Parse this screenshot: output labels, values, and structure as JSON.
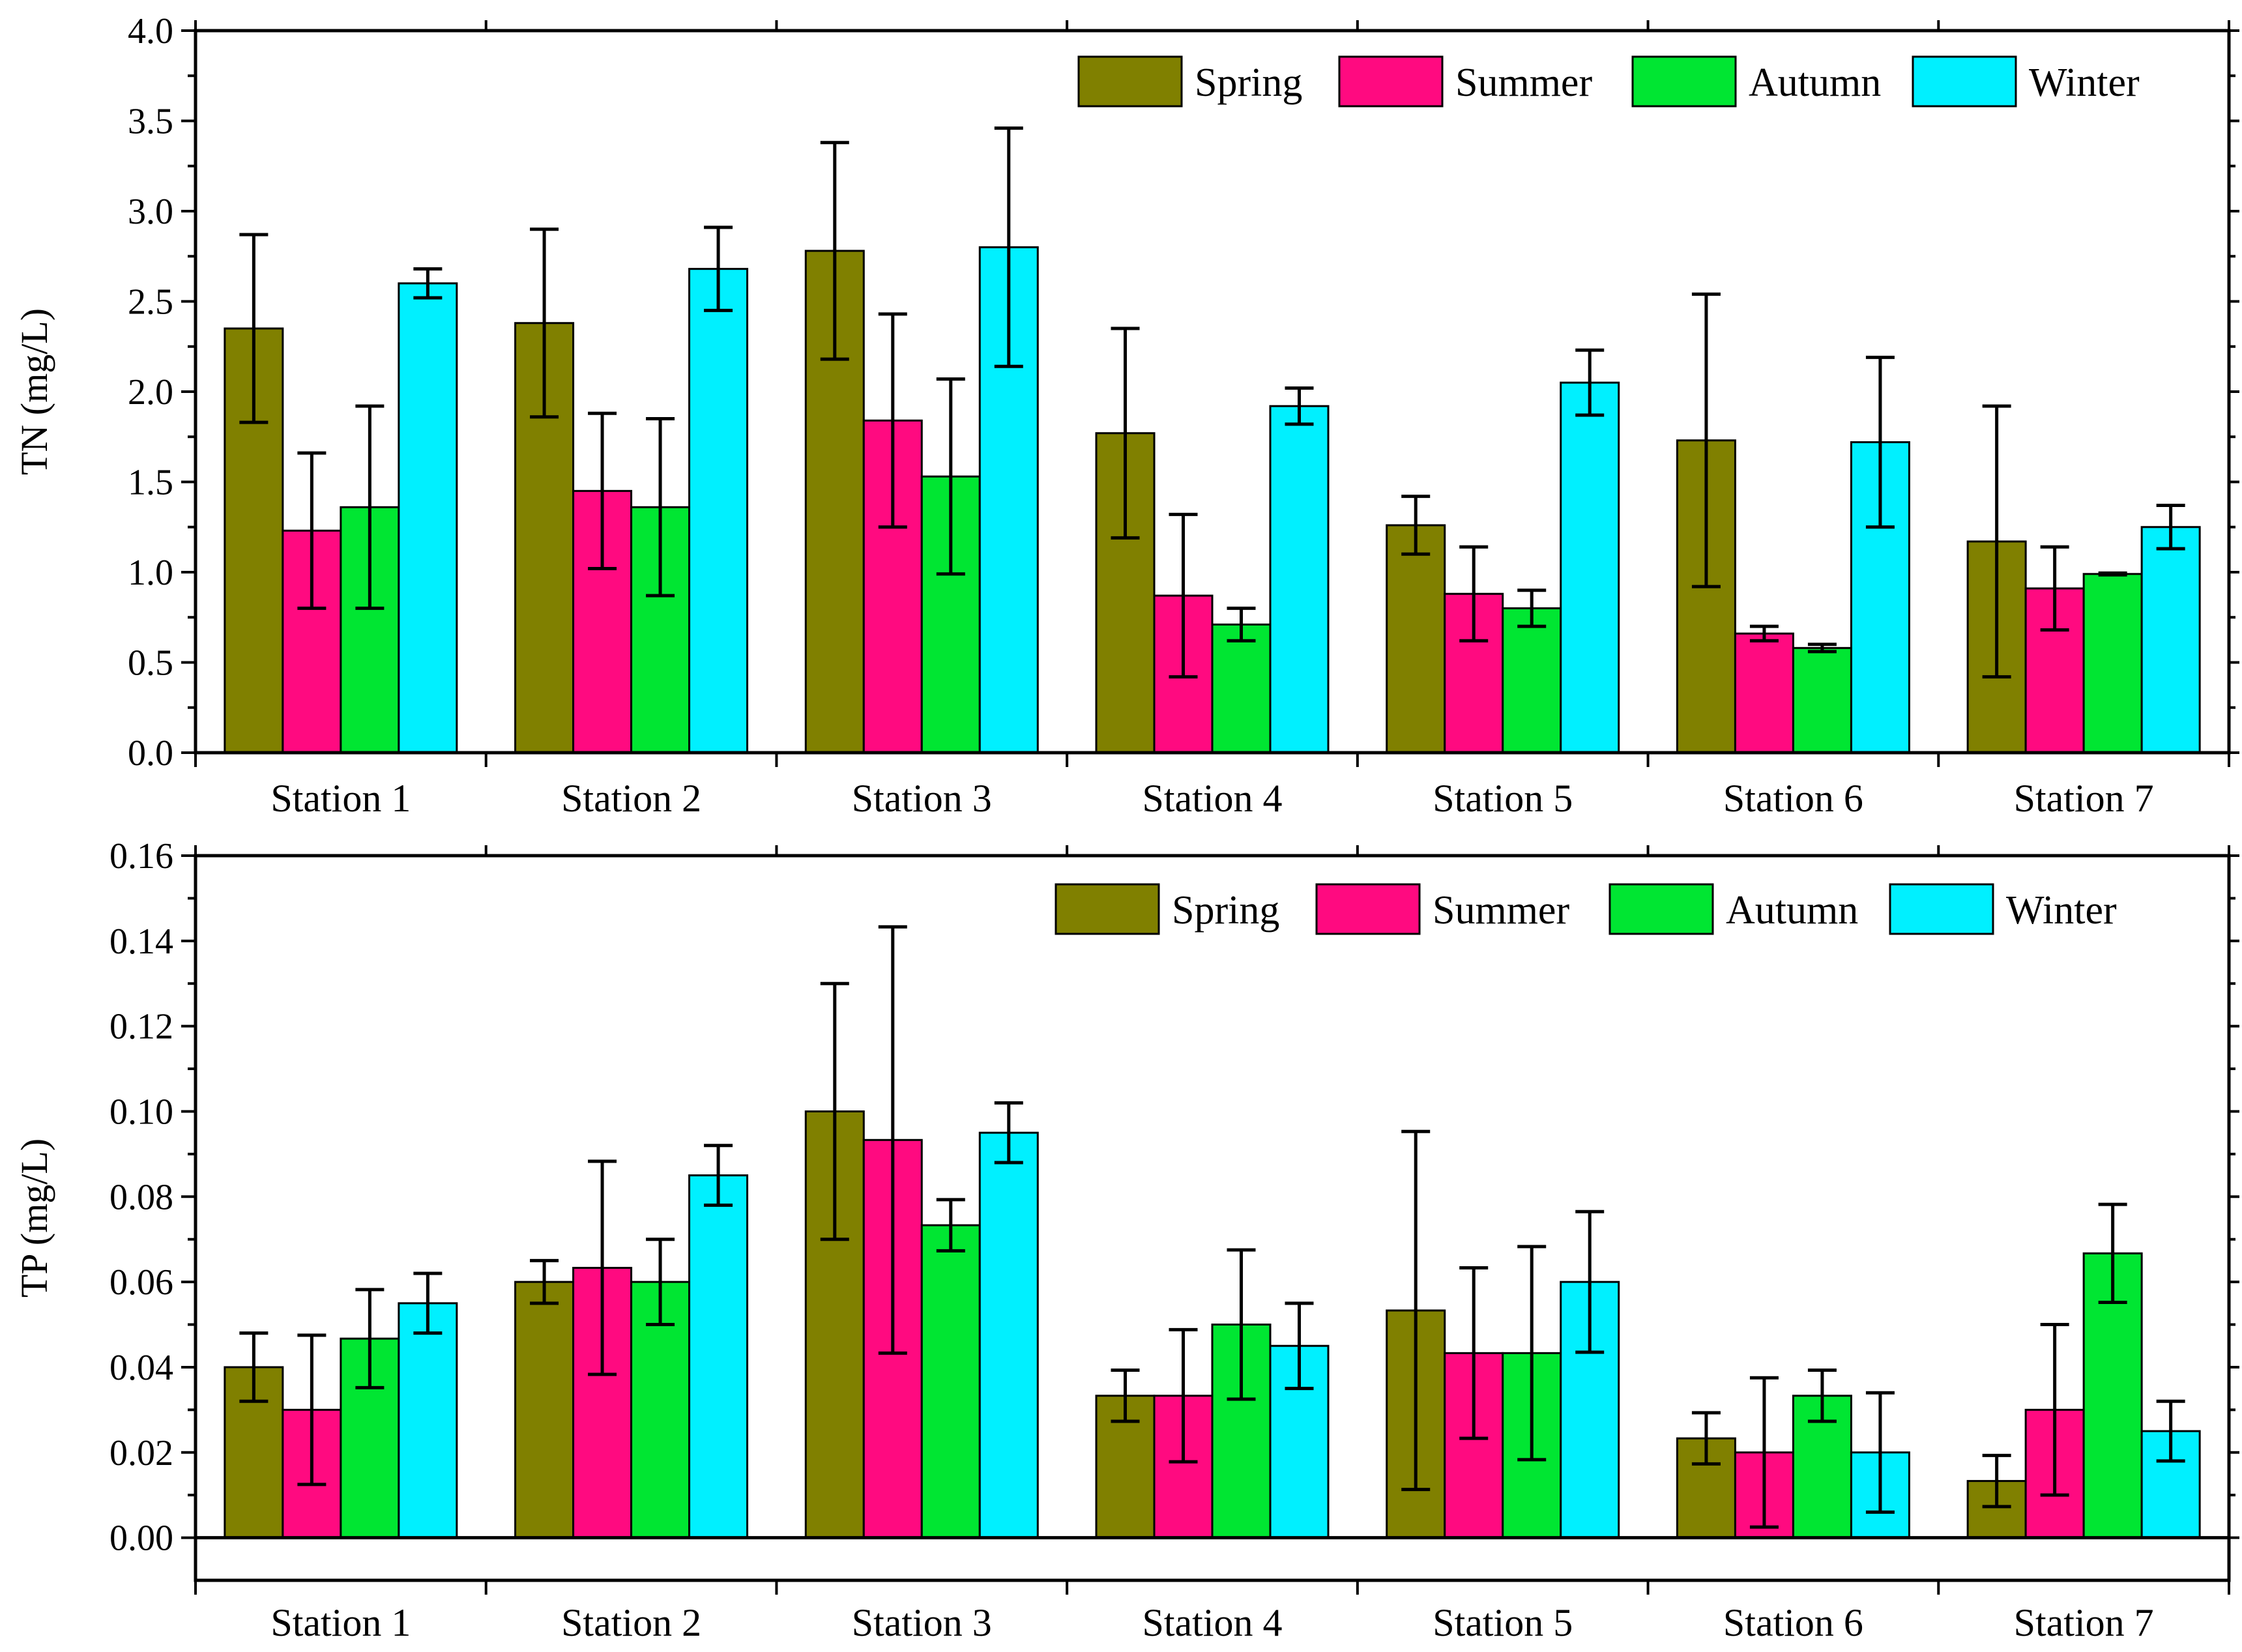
{
  "chart_data": [
    {
      "type": "bar",
      "ylabel": "TN (mg/L)",
      "xlabel": "",
      "ylim": [
        0,
        4.0
      ],
      "yticks": [
        0.0,
        0.5,
        1.0,
        1.5,
        2.0,
        2.5,
        3.0,
        3.5,
        4.0
      ],
      "yticklabels": [
        "0.0",
        "0.5",
        "1.0",
        "1.5",
        "2.0",
        "2.5",
        "3.0",
        "3.5",
        "4.0"
      ],
      "categories": [
        "Station 1",
        "Station 2",
        "Station 3",
        "Station 4",
        "Station 5",
        "Station 6",
        "Station 7"
      ],
      "legend": "top-right",
      "series": [
        {
          "name": "Spring",
          "color": "#808000",
          "values": [
            2.35,
            2.38,
            2.78,
            1.77,
            1.26,
            1.73,
            1.17
          ],
          "errors": [
            0.52,
            0.52,
            0.6,
            0.58,
            0.16,
            0.81,
            0.75
          ]
        },
        {
          "name": "Summer",
          "color": "#FF0A80",
          "values": [
            1.23,
            1.45,
            1.84,
            0.87,
            0.88,
            0.66,
            0.91
          ],
          "errors": [
            0.43,
            0.43,
            0.59,
            0.45,
            0.26,
            0.04,
            0.23
          ]
        },
        {
          "name": "Autumn",
          "color": "#00E632",
          "values": [
            1.36,
            1.36,
            1.53,
            0.71,
            0.8,
            0.58,
            0.99
          ],
          "errors": [
            0.56,
            0.49,
            0.54,
            0.09,
            0.1,
            0.02,
            0.005
          ]
        },
        {
          "name": "Winter",
          "color": "#00F0FF",
          "values": [
            2.6,
            2.68,
            2.8,
            1.92,
            2.05,
            1.72,
            1.25
          ],
          "errors": [
            0.08,
            0.23,
            0.66,
            0.1,
            0.18,
            0.47,
            0.12
          ]
        }
      ]
    },
    {
      "type": "bar",
      "ylabel": "TP (mg/L)",
      "xlabel": "",
      "ylim": [
        -0.01,
        0.16
      ],
      "yticks": [
        0.0,
        0.02,
        0.04,
        0.06,
        0.08,
        0.1,
        0.12,
        0.14,
        0.16
      ],
      "yticklabels": [
        "0.00",
        "0.02",
        "0.04",
        "0.06",
        "0.08",
        "0.10",
        "0.12",
        "0.14",
        "0.16"
      ],
      "categories": [
        "Station 1",
        "Station 2",
        "Station 3",
        "Station 4",
        "Station 5",
        "Station 6",
        "Station 7"
      ],
      "legend": "top-right",
      "series": [
        {
          "name": "Spring",
          "color": "#808000",
          "values": [
            0.04,
            0.06,
            0.1,
            0.0333,
            0.0533,
            0.0233,
            0.0133
          ],
          "errors": [
            0.008,
            0.005,
            0.03,
            0.006,
            0.042,
            0.006,
            0.006
          ]
        },
        {
          "name": "Summer",
          "color": "#FF0A80",
          "values": [
            0.03,
            0.0633,
            0.0933,
            0.0333,
            0.0433,
            0.02,
            0.03
          ],
          "errors": [
            0.0175,
            0.025,
            0.05,
            0.0155,
            0.02,
            0.0175,
            0.02
          ]
        },
        {
          "name": "Autumn",
          "color": "#00E632",
          "values": [
            0.0467,
            0.06,
            0.0733,
            0.05,
            0.0433,
            0.0333,
            0.0667
          ],
          "errors": [
            0.0115,
            0.01,
            0.006,
            0.0175,
            0.025,
            0.006,
            0.0115
          ]
        },
        {
          "name": "Winter",
          "color": "#00F0FF",
          "values": [
            0.055,
            0.085,
            0.095,
            0.045,
            0.06,
            0.02,
            0.025
          ],
          "errors": [
            0.007,
            0.007,
            0.007,
            0.01,
            0.0165,
            0.014,
            0.007
          ]
        }
      ]
    }
  ]
}
